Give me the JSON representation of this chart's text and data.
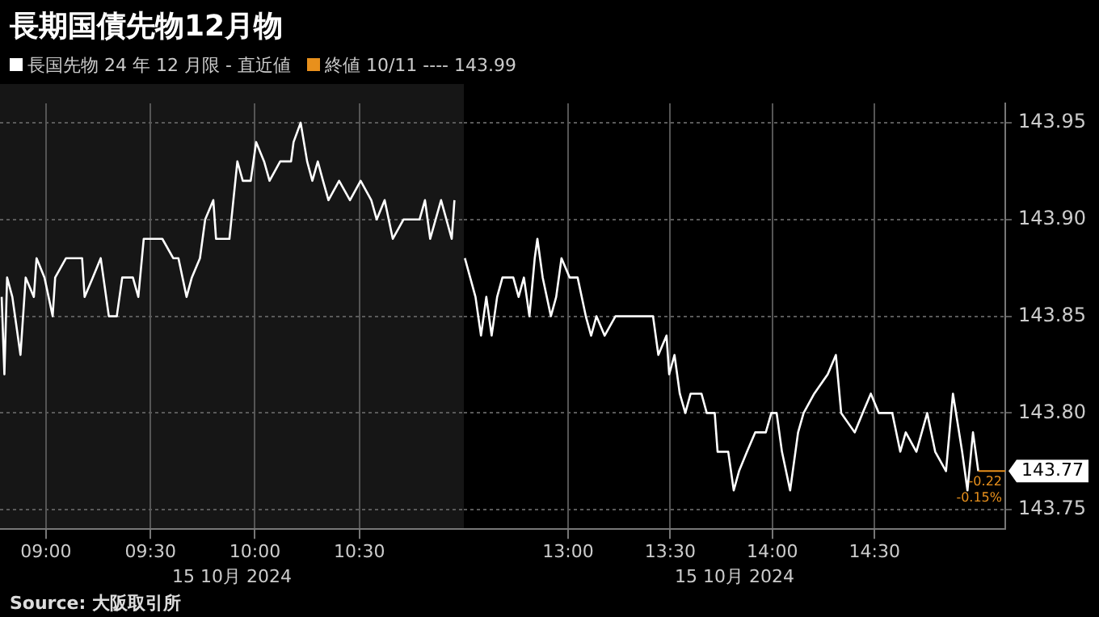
{
  "chart_data": [
    {
      "type": "line",
      "title": "長期国債先物12月物",
      "xlabel": "15 10月 2024",
      "legend": "top left",
      "grid": true,
      "tick_labels": "x",
      "marker": "none",
      "line_style": "solid",
      "annotations": [
        "終値 10/11 ---- 143.99",
        "Source: 大阪取引所"
      ],
      "xlim": [
        8.78,
        11.0
      ],
      "xticks": [
        {
          "value": 9,
          "label": "09:00"
        },
        {
          "value": 9.5,
          "label": "09:30"
        },
        {
          "value": 10,
          "label": "10:00"
        },
        {
          "value": 10.5,
          "label": "10:30"
        }
      ],
      "ylim": [
        143.74,
        143.96
      ],
      "yticks": [
        143.75,
        143.8,
        143.85,
        143.9,
        143.95
      ],
      "series": [
        {
          "name": "長国先物 24 年 12 月限 - 直近値",
          "color": "#ffffff",
          "x": [
            8.788,
            8.801,
            8.814,
            8.839,
            8.878,
            8.903,
            8.942,
            8.955,
            8.993,
            9.032,
            9.044,
            9.096,
            9.173,
            9.185,
            9.224,
            9.262,
            9.301,
            9.339,
            9.365,
            9.416,
            9.442,
            9.468,
            9.506,
            9.557,
            9.609,
            9.634,
            9.673,
            9.698,
            9.737,
            9.762,
            9.801,
            9.814,
            9.878,
            9.916,
            9.942,
            9.98,
            10.006,
            10.044,
            10.07,
            10.121,
            10.173,
            10.185,
            10.219,
            10.25,
            10.275,
            10.301,
            10.326,
            10.352,
            10.403,
            10.455,
            10.506,
            10.557,
            10.583,
            10.621,
            10.66,
            10.711,
            10.788,
            10.814,
            10.839,
            10.891,
            10.942,
            10.955
          ],
          "values": [
            143.86,
            143.82,
            143.87,
            143.86,
            143.83,
            143.87,
            143.86,
            143.88,
            143.87,
            143.85,
            143.87,
            143.88,
            143.88,
            143.86,
            143.87,
            143.88,
            143.85,
            143.85,
            143.87,
            143.87,
            143.86,
            143.89,
            143.89,
            143.89,
            143.88,
            143.88,
            143.86,
            143.87,
            143.88,
            143.9,
            143.91,
            143.89,
            143.89,
            143.93,
            143.92,
            143.92,
            143.94,
            143.93,
            143.92,
            143.93,
            143.93,
            143.94,
            143.95,
            143.93,
            143.92,
            143.93,
            143.92,
            143.91,
            143.92,
            143.91,
            143.92,
            143.91,
            143.9,
            143.91,
            143.89,
            143.9,
            143.9,
            143.91,
            143.89,
            143.91,
            143.89,
            143.91
          ]
        }
      ]
    },
    {
      "type": "line",
      "xlabel": "15 10月 2024",
      "grid": true,
      "marker": "none",
      "line_style": "solid",
      "annotations": [
        "-0.22",
        "-0.15%"
      ],
      "ref_lines": [
        {
          "axis": "y",
          "value": 143.77,
          "label": "143.77",
          "color": "#e8901c"
        }
      ],
      "xlim": [
        12.49,
        15.14
      ],
      "xticks": [
        {
          "value": 13,
          "label": "13:00"
        },
        {
          "value": 13.5,
          "label": "13:30"
        },
        {
          "value": 14,
          "label": "14:00"
        },
        {
          "value": 14.5,
          "label": "14:30"
        }
      ],
      "ylim": [
        143.74,
        143.96
      ],
      "yticks": [
        143.75,
        {
          "value": 143.8,
          "label": "143.80"
        },
        143.85,
        {
          "value": 143.9,
          "label": "143.90"
        },
        143.95
      ],
      "series": [
        {
          "color": "#ffffff",
          "x": [
            12.495,
            12.521,
            12.547,
            12.574,
            12.6,
            12.626,
            12.653,
            12.679,
            12.732,
            12.758,
            12.784,
            12.811,
            12.837,
            12.85,
            12.876,
            12.916,
            12.942,
            12.968,
            13.008,
            13.047,
            13.087,
            13.113,
            13.139,
            13.179,
            13.232,
            13.416,
            13.442,
            13.482,
            13.495,
            13.521,
            13.547,
            13.574,
            13.6,
            13.653,
            13.679,
            13.718,
            13.732,
            13.784,
            13.811,
            13.837,
            13.876,
            13.916,
            13.968,
            13.995,
            14.021,
            14.047,
            14.087,
            14.126,
            14.153,
            14.205,
            14.271,
            14.311,
            14.337,
            14.403,
            14.442,
            14.482,
            14.521,
            14.587,
            14.626,
            14.653,
            14.705,
            14.758,
            14.797,
            14.85,
            14.884,
            14.929,
            14.955,
            14.982,
            15.008
          ],
          "values": [
            143.88,
            143.87,
            143.86,
            143.84,
            143.86,
            143.84,
            143.86,
            143.87,
            143.87,
            143.86,
            143.87,
            143.85,
            143.88,
            143.89,
            143.87,
            143.85,
            143.86,
            143.88,
            143.87,
            143.87,
            143.85,
            143.84,
            143.85,
            143.84,
            143.85,
            143.85,
            143.83,
            143.84,
            143.82,
            143.83,
            143.81,
            143.8,
            143.81,
            143.81,
            143.8,
            143.8,
            143.78,
            143.78,
            143.76,
            143.77,
            143.78,
            143.79,
            143.79,
            143.8,
            143.8,
            143.78,
            143.76,
            143.79,
            143.8,
            143.81,
            143.82,
            143.83,
            143.8,
            143.79,
            143.8,
            143.81,
            143.8,
            143.8,
            143.78,
            143.79,
            143.78,
            143.8,
            143.78,
            143.77,
            143.81,
            143.78,
            143.76,
            143.79,
            143.77
          ]
        }
      ]
    }
  ]
}
